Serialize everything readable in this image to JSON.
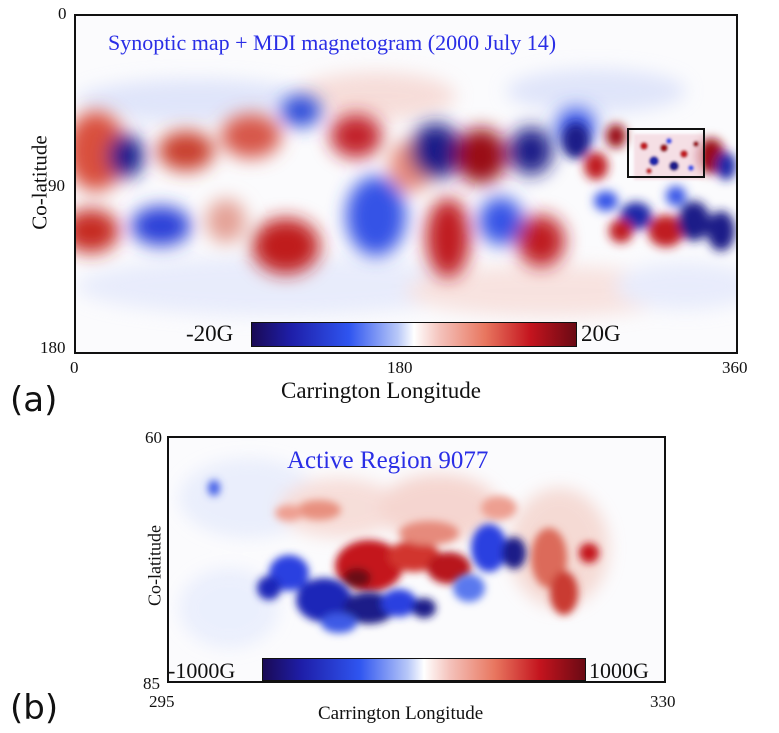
{
  "panel_a": {
    "letter": "(a)",
    "title": "Synoptic map + MDI magnetogram (2000 July 14)",
    "ylabel": "Co-latitude",
    "xlabel": "Carrington Longitude",
    "y_ticks": [
      "0",
      "90",
      "180"
    ],
    "x_ticks": [
      "0",
      "180",
      "360"
    ],
    "colorbar_min": "-20G",
    "colorbar_max": "20G"
  },
  "panel_b": {
    "letter": "(b)",
    "title": "Active Region 9077",
    "ylabel": "Co-latitude",
    "xlabel": "Carrington Longitude",
    "y_ticks": [
      "60",
      "85"
    ],
    "x_ticks": [
      "295",
      "330"
    ],
    "colorbar_min": "-1000G",
    "colorbar_max": "1000G"
  },
  "colors": {
    "title_blue": "#2a2ee6",
    "positive_red": "#c4141e",
    "negative_blue": "#1e1ea8",
    "dark_red": "#6a0a14",
    "dark_blue": "#1a0a55"
  }
}
